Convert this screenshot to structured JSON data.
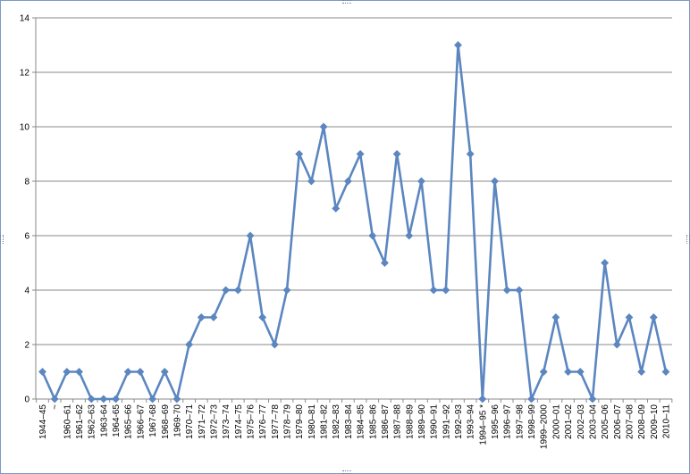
{
  "chart_data": {
    "type": "line",
    "title": "",
    "xlabel": "",
    "ylabel": "",
    "ylim": [
      0,
      14
    ],
    "yticks": [
      0,
      2,
      4,
      6,
      8,
      10,
      12,
      14
    ],
    "grid": true,
    "legend": "none",
    "line_color": "#5b86c0",
    "categories": [
      "1944–45",
      "~",
      "1960–61",
      "1961–62",
      "1962–63",
      "1963-64",
      "1964-65",
      "1965–66",
      "1966–67",
      "1967-68",
      "1968–69",
      "1969-70",
      "1970–71",
      "1971–72",
      "1972–73",
      "1973–74",
      "1974–75",
      "1975–76",
      "1976–77",
      "1977–78",
      "1978–79",
      "1979–80",
      "1980–81",
      "1981–82",
      "1982–83",
      "1983–84",
      "1984–85",
      "1985–86",
      "1986–87",
      "1987–88",
      "1988–89",
      "1989–90",
      "1990–91",
      "1991–92",
      "1992–93",
      "1993–94",
      "1994–95 *",
      "1995–96",
      "1996–97",
      "1997–98",
      "1998–99",
      "1999–2000",
      "2000–01",
      "2001–02",
      "2002–03",
      "2003–04",
      "2005–06",
      "2006–07",
      "2007–08",
      "2008–09",
      "2009–10",
      "2010–11"
    ],
    "values": [
      1,
      0,
      1,
      1,
      0,
      0,
      0,
      1,
      1,
      0,
      1,
      0,
      2,
      3,
      3,
      4,
      4,
      6,
      3,
      2,
      4,
      9,
      8,
      10,
      7,
      8,
      9,
      6,
      5,
      9,
      6,
      8,
      4,
      4,
      13,
      9,
      0,
      8,
      4,
      4,
      0,
      1,
      3,
      1,
      1,
      0,
      5,
      2,
      3,
      1,
      3,
      1
    ]
  }
}
